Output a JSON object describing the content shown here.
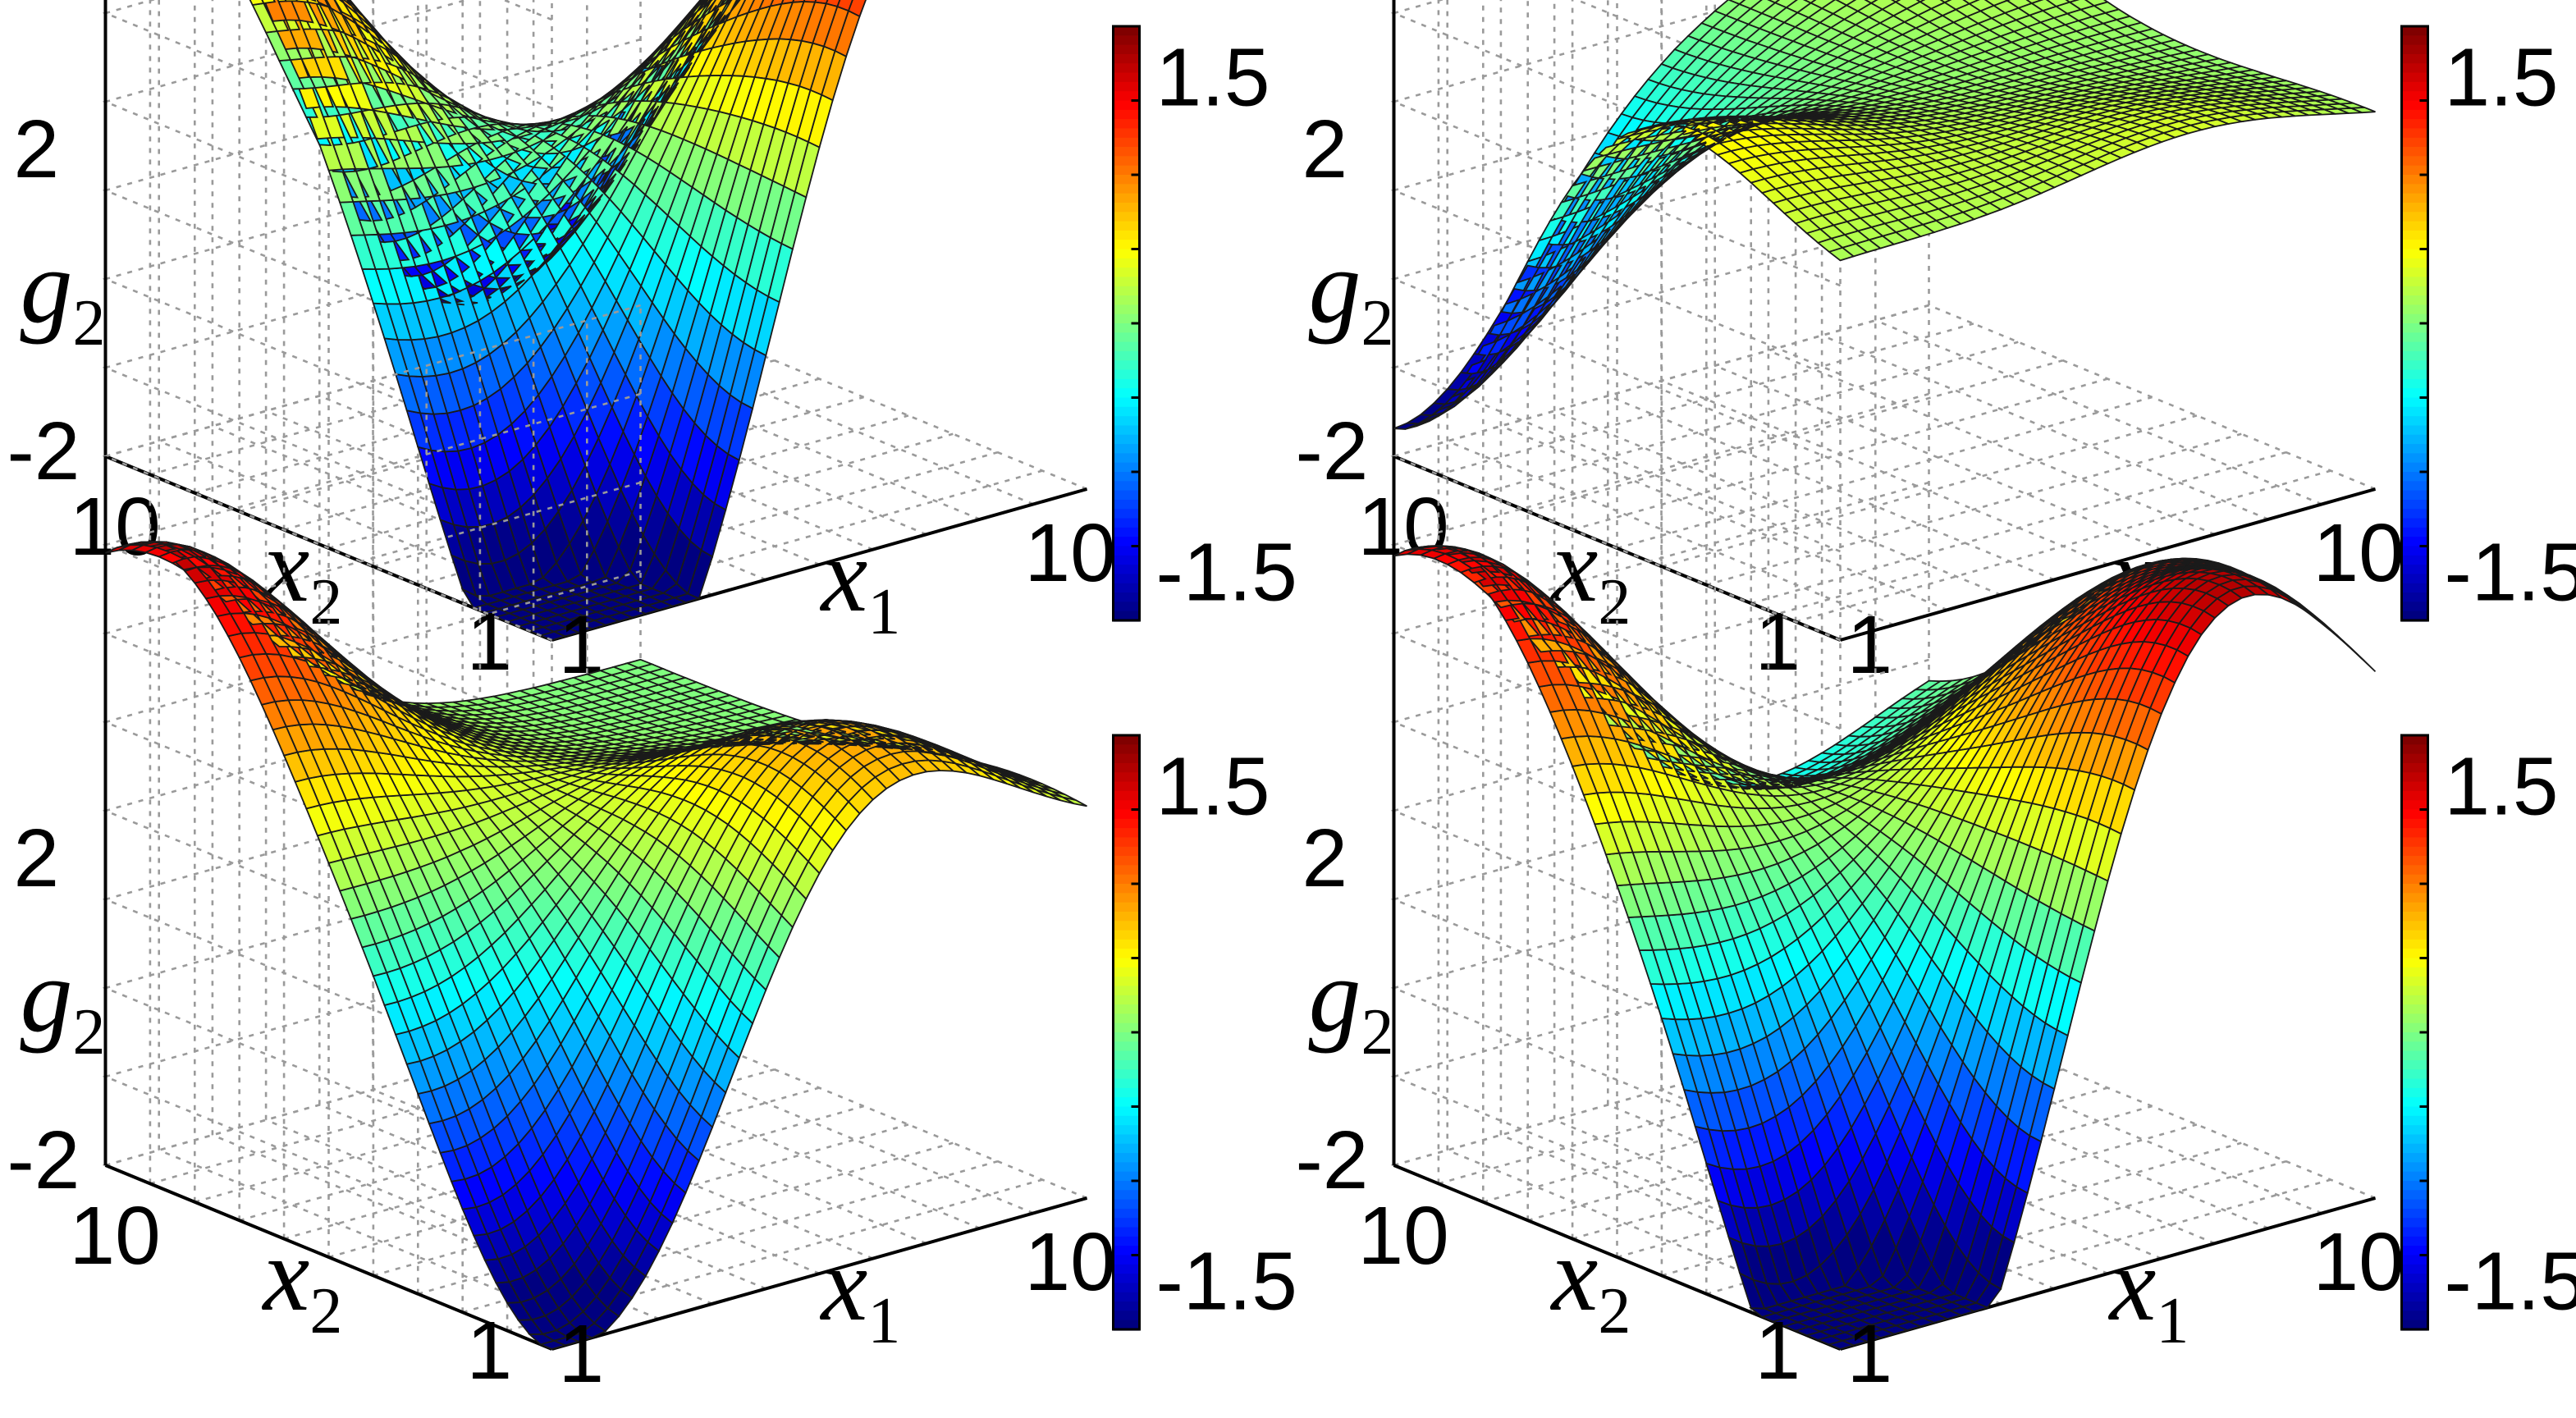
{
  "figure": {
    "layout": "2x2"
  },
  "chart_data": [
    {
      "type": "surface",
      "xlabel": "x",
      "xlabel_sub": "1",
      "ylabel": "x",
      "ylabel_sub": "2",
      "zlabel": "g",
      "zlabel_sub": "2",
      "xlim": [
        1,
        10
      ],
      "ylim": [
        1,
        10
      ],
      "zlim": [
        -2,
        2
      ],
      "x_ticks": [
        "1",
        "10"
      ],
      "y_ticks": [
        "1",
        "10"
      ],
      "z_ticks": [
        "-2",
        "2"
      ],
      "colorbar": {
        "range": [
          -1.8,
          1.8
        ],
        "tick_labels": [
          "1.5",
          "-1.5"
        ],
        "colormap": "jet"
      },
      "grid": true,
      "peaks": [
        {
          "x1": 1,
          "x2": 9,
          "z": 1.7
        },
        {
          "x1": 7,
          "x2": 1,
          "z": 1.9
        },
        {
          "x1": 10,
          "x2": 5,
          "z": 1.1
        },
        {
          "x1": 3,
          "x2": 1,
          "z": -1.8
        },
        {
          "x1": 7,
          "x2": 10,
          "z": -1.8
        },
        {
          "x1": 1,
          "x2": 1,
          "z": -1.5
        }
      ]
    },
    {
      "type": "surface",
      "xlabel": "x",
      "xlabel_sub": "1",
      "ylabel": "x",
      "ylabel_sub": "2",
      "zlabel": "g",
      "zlabel_sub": "2",
      "xlim": [
        1,
        10
      ],
      "ylim": [
        1,
        10
      ],
      "zlim": [
        -2,
        2
      ],
      "x_ticks": [
        "1",
        "10"
      ],
      "y_ticks": [
        "1",
        "10"
      ],
      "z_ticks": [
        "-2",
        "2"
      ],
      "colorbar": {
        "range": [
          -1.8,
          1.8
        ],
        "tick_labels": [
          "1.5",
          "-1.5"
        ],
        "colormap": "jet"
      },
      "grid": true,
      "peaks": [
        {
          "x1": 1,
          "x2": 10,
          "z": -1.9
        },
        {
          "x1": 1,
          "x2": 5,
          "z": 0.6
        },
        {
          "x1": 7,
          "x2": 1,
          "z": 0.3
        },
        {
          "x1": 10,
          "x2": 10,
          "z": 0.4
        }
      ]
    },
    {
      "type": "surface",
      "xlabel": "x",
      "xlabel_sub": "1",
      "ylabel": "x",
      "ylabel_sub": "2",
      "zlabel": "g",
      "zlabel_sub": "2",
      "xlim": [
        1,
        10
      ],
      "ylim": [
        1,
        10
      ],
      "zlim": [
        -2,
        2
      ],
      "x_ticks": [
        "1",
        "10"
      ],
      "y_ticks": [
        "1",
        "10"
      ],
      "z_ticks": [
        "-2",
        "2"
      ],
      "colorbar": {
        "range": [
          -1.8,
          1.8
        ],
        "tick_labels": [
          "1.5",
          "-1.5"
        ],
        "colormap": "jet"
      },
      "grid": true,
      "peaks": [
        {
          "x1": 1,
          "x2": 9,
          "z": 1.6
        },
        {
          "x1": 6,
          "x2": 2,
          "z": 1.1
        },
        {
          "x1": 1,
          "x2": 1,
          "z": -1.5
        },
        {
          "x1": 3,
          "x2": 1,
          "z": -0.9
        }
      ]
    },
    {
      "type": "surface",
      "xlabel": "x",
      "xlabel_sub": "1",
      "ylabel": "x",
      "ylabel_sub": "2",
      "zlabel": "g",
      "zlabel_sub": "2",
      "xlim": [
        1,
        10
      ],
      "ylim": [
        1,
        10
      ],
      "zlim": [
        -2,
        2
      ],
      "x_ticks": [
        "1",
        "10"
      ],
      "y_ticks": [
        "1",
        "10"
      ],
      "z_ticks": [
        "-2",
        "2"
      ],
      "colorbar": {
        "range": [
          -1.8,
          1.8
        ],
        "tick_labels": [
          "1.5",
          "-1.5"
        ],
        "colormap": "jet"
      },
      "grid": true,
      "peaks": [
        {
          "x1": 1,
          "x2": 9,
          "z": 1.6
        },
        {
          "x1": 7,
          "x2": 1,
          "z": 1.8
        },
        {
          "x1": 10,
          "x2": 5,
          "z": 1.0
        },
        {
          "x1": 3,
          "x2": 1,
          "z": -1.9
        },
        {
          "x1": 7,
          "x2": 10,
          "z": -0.5
        },
        {
          "x1": 1,
          "x2": 1,
          "z": -1.5
        }
      ]
    }
  ]
}
